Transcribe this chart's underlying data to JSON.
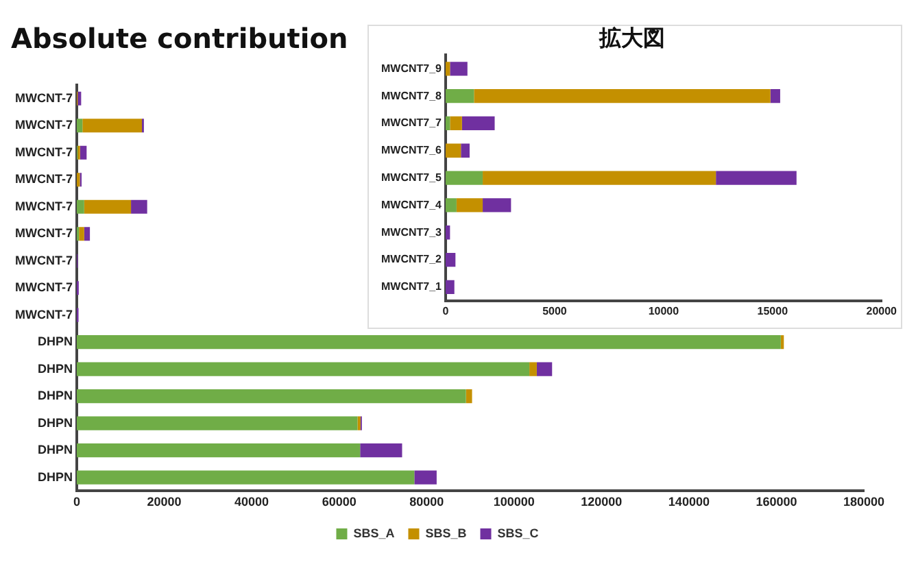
{
  "chart_data": [
    {
      "type": "bar",
      "orientation": "horizontal",
      "stacked": true,
      "title": "Absolute contribution",
      "categories": [
        "MWCNT-7",
        "MWCNT-7",
        "MWCNT-7",
        "MWCNT-7",
        "MWCNT-7",
        "MWCNT-7",
        "MWCNT-7",
        "MWCNT-7",
        "MWCNT-7",
        "DHPN",
        "DHPN",
        "DHPN",
        "DHPN",
        "DHPN",
        "DHPN"
      ],
      "series": [
        {
          "name": "SBS_A",
          "color": "#70ad47",
          "values": [
            0,
            1300,
            200,
            0,
            1700,
            500,
            0,
            0,
            0,
            161000,
            103500,
            89000,
            64200,
            64800,
            77200
          ]
        },
        {
          "name": "SBS_B",
          "color": "#c49000",
          "values": [
            200,
            13600,
            550,
            700,
            10700,
            1200,
            0,
            0,
            0,
            700,
            1700,
            1400,
            700,
            0,
            0
          ]
        },
        {
          "name": "SBS_C",
          "color": "#7030a0",
          "values": [
            800,
            450,
            1500,
            400,
            3700,
            1300,
            200,
            450,
            400,
            0,
            3500,
            0,
            300,
            9600,
            5100
          ]
        }
      ],
      "xlim": [
        0,
        180000
      ],
      "xticks": [
        0,
        20000,
        40000,
        60000,
        80000,
        100000,
        120000,
        140000,
        160000,
        180000
      ],
      "grid": false,
      "legend": "bottom"
    },
    {
      "type": "bar",
      "orientation": "horizontal",
      "stacked": true,
      "title": "拡大図",
      "categories": [
        "MWCNT7_9",
        "MWCNT7_8",
        "MWCNT7_7",
        "MWCNT7_6",
        "MWCNT7_5",
        "MWCNT7_4",
        "MWCNT7_3",
        "MWCNT7_2",
        "MWCNT7_1"
      ],
      "series": [
        {
          "color": "#70ad47",
          "values": [
            0,
            1300,
            200,
            0,
            1700,
            500,
            0,
            0,
            0
          ]
        },
        {
          "color": "#c49000",
          "values": [
            200,
            13600,
            550,
            700,
            10700,
            1200,
            0,
            0,
            0
          ]
        },
        {
          "color": "#7030a0",
          "values": [
            800,
            450,
            1500,
            400,
            3700,
            1300,
            200,
            450,
            400
          ]
        }
      ],
      "xlim": [
        0,
        20000
      ],
      "xticks": [
        0,
        5000,
        10000,
        15000,
        20000
      ],
      "grid": false,
      "legend": false
    }
  ]
}
